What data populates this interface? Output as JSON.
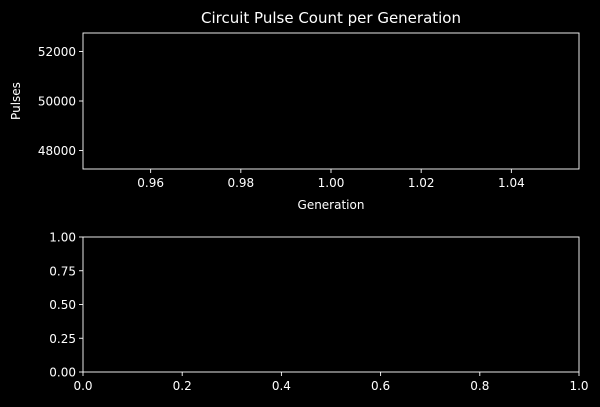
{
  "colors": {
    "background": "#000000",
    "foreground": "#ffffff"
  },
  "chart_data": [
    {
      "type": "line",
      "title": "Circuit Pulse Count per Generation",
      "xlabel": "Generation",
      "ylabel": "Pulses",
      "xlim": [
        0.945,
        1.055
      ],
      "ylim": [
        47250,
        52750
      ],
      "x_ticks": [
        0.96,
        0.98,
        1.0,
        1.02,
        1.04
      ],
      "x_tick_labels": [
        "0.96",
        "0.98",
        "1.00",
        "1.02",
        "1.04"
      ],
      "y_ticks": [
        48000,
        50000,
        52000
      ],
      "y_tick_labels": [
        "48000",
        "50000",
        "52000"
      ],
      "grid": false,
      "series": []
    },
    {
      "type": "line",
      "title": "",
      "xlabel": "",
      "ylabel": "",
      "xlim": [
        0,
        1
      ],
      "ylim": [
        0,
        1
      ],
      "x_ticks": [
        0,
        0.2,
        0.4,
        0.6,
        0.8,
        1.0
      ],
      "x_tick_labels": [
        "0.0",
        "0.2",
        "0.4",
        "0.6",
        "0.8",
        "1.0"
      ],
      "y_ticks": [
        0,
        0.25,
        0.5,
        0.75,
        1.0
      ],
      "y_tick_labels": [
        "0.00",
        "0.25",
        "0.50",
        "0.75",
        "1.00"
      ],
      "grid": false,
      "series": []
    }
  ]
}
